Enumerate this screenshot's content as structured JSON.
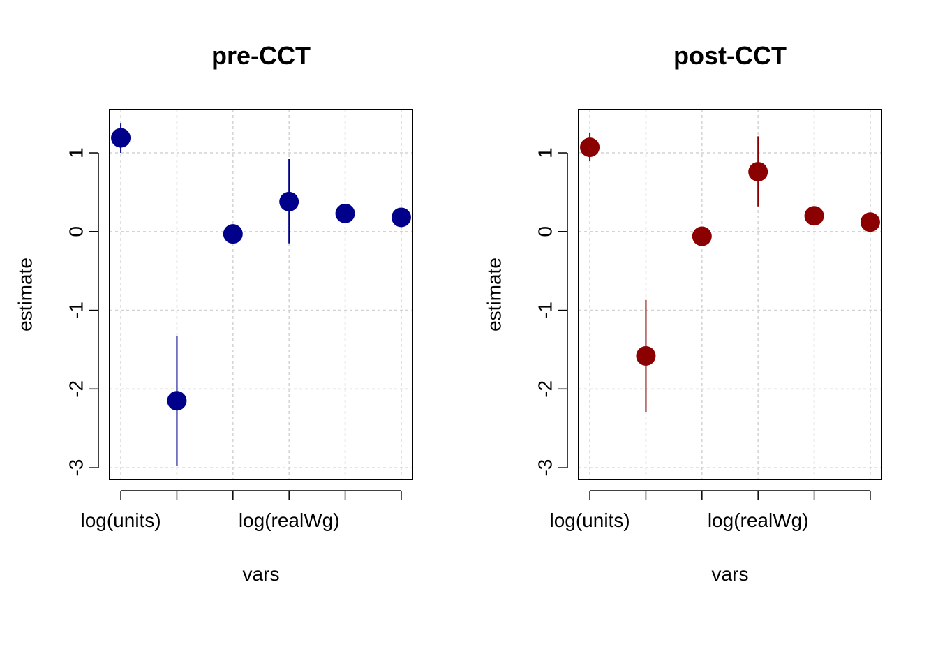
{
  "chart_data": [
    {
      "type": "scatter",
      "title": "pre-CCT",
      "xlabel": "vars",
      "ylabel": "estimate",
      "x": [
        1,
        2,
        3,
        4,
        5,
        6
      ],
      "x_tick_labels": [
        "log(units)",
        "",
        "",
        "log(realWg)",
        "",
        ""
      ],
      "xlim": [
        0.8,
        6.2
      ],
      "ylim": [
        -3.15,
        1.55
      ],
      "y_ticks": [
        -3,
        -2,
        -1,
        0,
        1
      ],
      "y_tick_labels": [
        "-3",
        "-2",
        "-1",
        "0",
        "1"
      ],
      "grid": true,
      "point_color": "#00008B",
      "series": [
        {
          "values": [
            1.19,
            -2.15,
            -0.03,
            0.38,
            0.23,
            0.18
          ],
          "lower": [
            1.0,
            -2.98,
            -0.03,
            -0.15,
            0.23,
            0.18
          ],
          "upper": [
            1.38,
            -1.33,
            -0.03,
            0.92,
            0.23,
            0.18
          ]
        }
      ]
    },
    {
      "type": "scatter",
      "title": "post-CCT",
      "xlabel": "vars",
      "ylabel": "estimate",
      "x": [
        1,
        2,
        3,
        4,
        5,
        6
      ],
      "x_tick_labels": [
        "log(units)",
        "",
        "",
        "log(realWg)",
        "",
        ""
      ],
      "xlim": [
        0.8,
        6.2
      ],
      "ylim": [
        -3.15,
        1.55
      ],
      "y_ticks": [
        -3,
        -2,
        -1,
        0,
        1
      ],
      "y_tick_labels": [
        "-3",
        "-2",
        "-1",
        "0",
        "1"
      ],
      "grid": true,
      "point_color": "#8B0000",
      "series": [
        {
          "values": [
            1.07,
            -1.58,
            -0.06,
            0.76,
            0.2,
            0.12
          ],
          "lower": [
            0.9,
            -2.29,
            -0.06,
            0.32,
            0.2,
            0.12
          ],
          "upper": [
            1.25,
            -0.87,
            -0.06,
            1.21,
            0.2,
            0.12
          ]
        }
      ]
    }
  ]
}
